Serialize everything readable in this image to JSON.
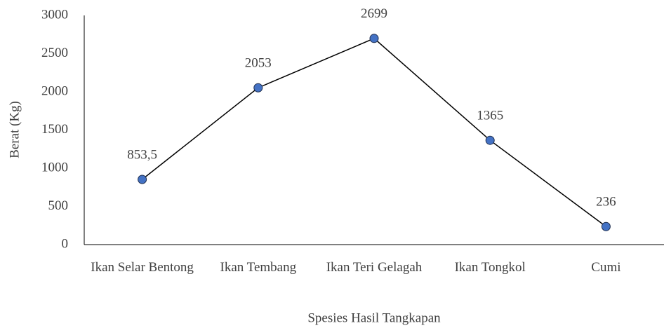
{
  "chart_data": {
    "type": "line",
    "xlabel": "Spesies Hasil Tangkapan",
    "ylabel": "Berat (Kg)",
    "categories": [
      "Ikan Selar Bentong",
      "Ikan Tembang",
      "Ikan Teri Gelagah",
      "Ikan Tongkol",
      "Cumi"
    ],
    "series": [
      {
        "name": "Berat",
        "color": "#4472c4",
        "line_color": "#000000",
        "values": [
          853.5,
          2053,
          2699,
          1365,
          236
        ],
        "value_labels": [
          "853,5",
          "2053",
          "2699",
          "1365",
          "236"
        ]
      }
    ],
    "ylim": [
      0,
      3000
    ],
    "yticks": [
      0,
      500,
      1000,
      1500,
      2000,
      2500,
      3000
    ],
    "grid": false
  }
}
